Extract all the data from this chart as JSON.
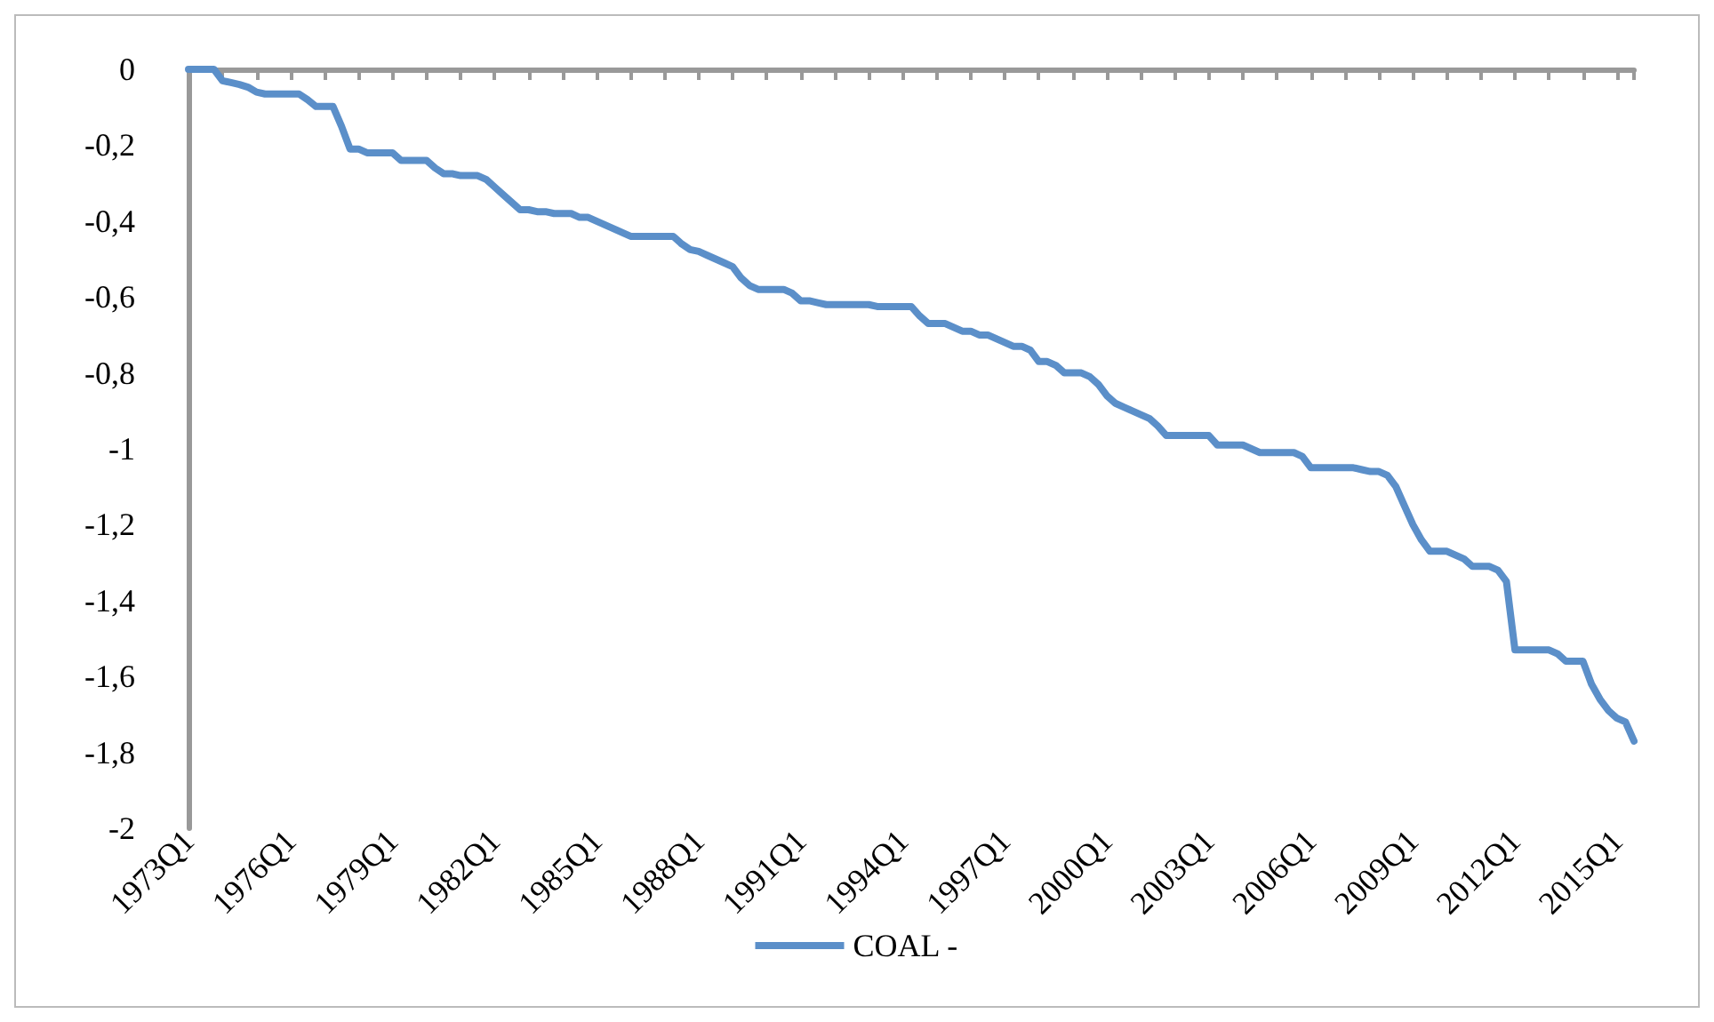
{
  "chart_data": {
    "type": "line",
    "categories": [
      "1973Q1",
      null,
      null,
      null,
      null,
      null,
      null,
      null,
      null,
      null,
      null,
      null,
      "1976Q1",
      null,
      null,
      null,
      null,
      null,
      null,
      null,
      null,
      null,
      null,
      null,
      "1979Q1",
      null,
      null,
      null,
      null,
      null,
      null,
      null,
      null,
      null,
      null,
      null,
      "1982Q1",
      null,
      null,
      null,
      null,
      null,
      null,
      null,
      null,
      null,
      null,
      null,
      "1985Q1",
      null,
      null,
      null,
      null,
      null,
      null,
      null,
      null,
      null,
      null,
      null,
      "1988Q1",
      null,
      null,
      null,
      null,
      null,
      null,
      null,
      null,
      null,
      null,
      null,
      "1991Q1",
      null,
      null,
      null,
      null,
      null,
      null,
      null,
      null,
      null,
      null,
      null,
      "1994Q1",
      null,
      null,
      null,
      null,
      null,
      null,
      null,
      null,
      null,
      null,
      null,
      "1997Q1",
      null,
      null,
      null,
      null,
      null,
      null,
      null,
      null,
      null,
      null,
      null,
      "2000Q1",
      null,
      null,
      null,
      null,
      null,
      null,
      null,
      null,
      null,
      null,
      null,
      "2003Q1",
      null,
      null,
      null,
      null,
      null,
      null,
      null,
      null,
      null,
      null,
      null,
      "2006Q1",
      null,
      null,
      null,
      null,
      null,
      null,
      null,
      null,
      null,
      null,
      null,
      "2009Q1",
      null,
      null,
      null,
      null,
      null,
      null,
      null,
      null,
      null,
      null,
      null,
      "2012Q1",
      null,
      null,
      null,
      null,
      null,
      null,
      null,
      null,
      null,
      null,
      null,
      "2015Q1",
      null,
      null
    ],
    "series": [
      {
        "name": "COAL -",
        "color": "#5b8fc9",
        "values": [
          0,
          0,
          0,
          0,
          -0.03,
          -0.035,
          -0.04,
          -0.047,
          -0.06,
          -0.065,
          -0.065,
          -0.065,
          -0.065,
          -0.065,
          -0.08,
          -0.098,
          -0.098,
          -0.098,
          -0.15,
          -0.21,
          -0.21,
          -0.22,
          -0.22,
          -0.22,
          -0.22,
          -0.24,
          -0.24,
          -0.24,
          -0.24,
          -0.26,
          -0.275,
          -0.275,
          -0.28,
          -0.28,
          -0.28,
          -0.29,
          -0.31,
          -0.33,
          -0.35,
          -0.37,
          -0.37,
          -0.375,
          -0.375,
          -0.38,
          -0.38,
          -0.38,
          -0.39,
          -0.39,
          -0.4,
          -0.41,
          -0.42,
          -0.43,
          -0.44,
          -0.44,
          -0.44,
          -0.44,
          -0.44,
          -0.44,
          -0.46,
          -0.475,
          -0.48,
          -0.49,
          -0.5,
          -0.51,
          -0.52,
          -0.55,
          -0.57,
          -0.58,
          -0.58,
          -0.58,
          -0.58,
          -0.59,
          -0.61,
          -0.61,
          -0.615,
          -0.62,
          -0.62,
          -0.62,
          -0.62,
          -0.62,
          -0.62,
          -0.625,
          -0.625,
          -0.625,
          -0.625,
          -0.625,
          -0.65,
          -0.67,
          -0.67,
          -0.67,
          -0.68,
          -0.69,
          -0.69,
          -0.7,
          -0.7,
          -0.71,
          -0.72,
          -0.73,
          -0.73,
          -0.74,
          -0.77,
          -0.77,
          -0.78,
          -0.8,
          -0.8,
          -0.8,
          -0.81,
          -0.83,
          -0.86,
          -0.88,
          -0.89,
          -0.9,
          -0.91,
          -0.92,
          -0.94,
          -0.965,
          -0.965,
          -0.965,
          -0.965,
          -0.965,
          -0.965,
          -0.99,
          -0.99,
          -0.99,
          -0.99,
          -1.0,
          -1.01,
          -1.01,
          -1.01,
          -1.01,
          -1.01,
          -1.02,
          -1.05,
          -1.05,
          -1.05,
          -1.05,
          -1.05,
          -1.05,
          -1.055,
          -1.06,
          -1.06,
          -1.07,
          -1.1,
          -1.15,
          -1.2,
          -1.24,
          -1.27,
          -1.27,
          -1.27,
          -1.28,
          -1.29,
          -1.31,
          -1.31,
          -1.31,
          -1.32,
          -1.35,
          -1.53,
          -1.53,
          -1.53,
          -1.53,
          -1.53,
          -1.54,
          -1.56,
          -1.56,
          -1.56,
          -1.62,
          -1.66,
          -1.69,
          -1.71,
          -1.72,
          -1.77
        ]
      }
    ],
    "ylim": [
      -2,
      0
    ],
    "yticks": [
      {
        "value": -2,
        "label": "-2"
      },
      {
        "value": -1.8,
        "label": "-1,8"
      },
      {
        "value": -1.6,
        "label": "-1,6"
      },
      {
        "value": -1.4,
        "label": "-1,4"
      },
      {
        "value": -1.2,
        "label": "-1,2"
      },
      {
        "value": -1,
        "label": "-1"
      },
      {
        "value": -0.8,
        "label": "-0,8"
      },
      {
        "value": -0.6,
        "label": "-0,6"
      },
      {
        "value": -0.4,
        "label": "-0,4"
      },
      {
        "value": -0.2,
        "label": "-0,2"
      },
      {
        "value": 0,
        "label": "0"
      }
    ],
    "grid": false,
    "legend": "bottom",
    "marker": "none",
    "line_style": "solid"
  }
}
